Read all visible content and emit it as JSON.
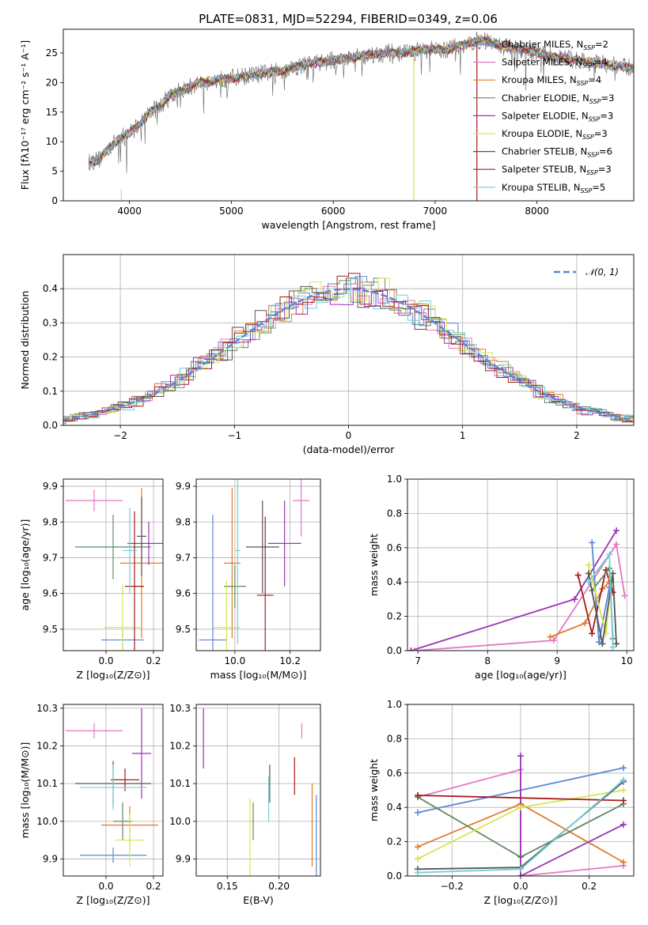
{
  "figure": {
    "title": "PLATE=0831, MJD=52294, FIBERID=0349, z=0.06"
  },
  "colors": {
    "chabrier_miles": "#5b86d9",
    "salpeter_miles": "#e377c2",
    "kroupa_miles": "#e07b2a",
    "chabrier_elodie": "#5f8a5f",
    "salpeter_elodie": "#9a33b5",
    "kroupa_elodie": "#d8e64d",
    "chabrier_stelib": "#555555",
    "salpeter_stelib": "#a61c1c",
    "kroupa_stelib": "#72cfd6",
    "gaussian": "#5b86d9"
  },
  "chart_data": [
    {
      "id": "spectrum",
      "type": "line",
      "xlabel": "wavelength [Angstrom, rest frame]",
      "ylabel": "Flux [fλ10⁻¹⁷ erg cm⁻² s⁻¹ A⁻¹]",
      "xlim": [
        3350,
        8950
      ],
      "ylim": [
        0,
        29
      ],
      "xticks": [
        4000,
        5000,
        6000,
        7000,
        8000
      ],
      "yticks": [
        0,
        5,
        10,
        15,
        20,
        25
      ],
      "grid": false,
      "legend_position": "right",
      "series": [
        {
          "name": "Chabrier MILES, N_SSP=2",
          "color_key": "chabrier_miles"
        },
        {
          "name": "Salpeter MILES, N_SSP=4",
          "color_key": "salpeter_miles"
        },
        {
          "name": "Kroupa MILES, N_SSP=4",
          "color_key": "kroupa_miles"
        },
        {
          "name": "Chabrier ELODIE, N_SSP=3",
          "color_key": "chabrier_elodie"
        },
        {
          "name": "Salpeter ELODIE, N_SSP=3",
          "color_key": "salpeter_elodie"
        },
        {
          "name": "Kroupa ELODIE, N_SSP=3",
          "color_key": "kroupa_elodie"
        },
        {
          "name": "Chabrier STELIB, N_SSP=6",
          "color_key": "chabrier_stelib"
        },
        {
          "name": "Salpeter STELIB, N_SSP=3",
          "color_key": "salpeter_stelib"
        },
        {
          "name": "Kroupa STELIB, N_SSP=5",
          "color_key": "kroupa_stelib"
        }
      ],
      "data_curve": {
        "x": [
          3600,
          3700,
          3800,
          3900,
          4000,
          4100,
          4200,
          4300,
          4400,
          4500,
          4700,
          4900,
          5100,
          5300,
          5500,
          5700,
          5900,
          6100,
          6300,
          6500,
          6700,
          6900,
          7000,
          7100,
          7200,
          7300,
          7400,
          7500,
          7700,
          7900,
          8100,
          8300,
          8500,
          8700,
          8900
        ],
        "y": [
          6.5,
          7,
          9,
          10.5,
          11.5,
          13,
          15,
          16,
          18,
          18.5,
          20,
          20.5,
          21,
          21.5,
          22,
          23,
          23.5,
          24,
          24.5,
          25,
          25,
          25.5,
          25.5,
          25.5,
          26,
          26.5,
          27,
          27,
          26,
          25.5,
          24.5,
          24,
          23.5,
          23,
          22.5
        ]
      },
      "spikes": [
        {
          "x": 3920,
          "ymin": 0,
          "ymax": 2,
          "color_key": "kroupa_elodie"
        },
        {
          "x": 6790,
          "ymin": 0,
          "ymax": 24,
          "color_key": "kroupa_elodie"
        },
        {
          "x": 7410,
          "ymin": 0,
          "ymax": 27,
          "color_key": "salpeter_stelib"
        }
      ]
    },
    {
      "id": "residual_histogram",
      "type": "line",
      "xlabel": "(data-model)/error",
      "ylabel": "Normed distribution",
      "xlim": [
        -2.5,
        2.5
      ],
      "ylim": [
        0,
        0.5
      ],
      "xticks": [
        -2,
        -1,
        0,
        1,
        2
      ],
      "yticks": [
        0.0,
        0.1,
        0.2,
        0.3,
        0.4
      ],
      "grid": true,
      "legend_position": "top-right",
      "gaussian_label": "𝒩(0, 1)"
    },
    {
      "id": "age_vs_Z",
      "type": "scatter",
      "xlabel": "Z [log₁₀(Z/Z⊙)]",
      "ylabel": "age  [log₁₀(age/yr)]",
      "xlim": [
        -0.18,
        0.24
      ],
      "ylim": [
        9.44,
        9.92
      ],
      "xticks": [
        0.0,
        0.2
      ],
      "yticks": [
        9.5,
        9.6,
        9.7,
        9.8,
        9.9
      ],
      "grid": true,
      "points": [
        {
          "color_key": "chabrier_miles",
          "x": 0.07,
          "xerr": 0.09,
          "y": 9.47,
          "yerr": 0.03
        },
        {
          "color_key": "salpeter_miles",
          "x": -0.05,
          "xerr": 0.12,
          "y": 9.86,
          "yerr": 0.03
        },
        {
          "color_key": "kroupa_miles",
          "x": 0.15,
          "xerr": 0.09,
          "y": 9.685,
          "yerr": 0.21
        },
        {
          "color_key": "chabrier_elodie",
          "x": 0.03,
          "xerr": 0.16,
          "y": 9.73,
          "yerr": 0.09
        },
        {
          "color_key": "salpeter_elodie",
          "x": 0.18,
          "xerr": 0.09,
          "y": 9.74,
          "yerr": 0.06
        },
        {
          "color_key": "kroupa_elodie",
          "x": 0.07,
          "xerr": 0.08,
          "y": 9.505,
          "yerr": 0.12
        },
        {
          "color_key": "chabrier_stelib",
          "x": 0.15,
          "xerr": 0.02,
          "y": 9.76,
          "yerr": 0.11
        },
        {
          "color_key": "salpeter_stelib",
          "x": 0.12,
          "xerr": 0.04,
          "y": 9.62,
          "yerr": 0.21
        },
        {
          "color_key": "kroupa_stelib",
          "x": 0.1,
          "xerr": 0.03,
          "y": 9.72,
          "yerr": 0.12
        }
      ]
    },
    {
      "id": "age_vs_mass",
      "type": "scatter",
      "xlabel": "mass [log₁₀(M/M⊙)]",
      "ylabel": "",
      "xlim": [
        9.86,
        10.31
      ],
      "ylim": [
        9.44,
        9.92
      ],
      "xticks": [
        10.0,
        10.2
      ],
      "yticks": [
        9.5,
        9.6,
        9.7,
        9.8,
        9.9
      ],
      "grid": true,
      "points": [
        {
          "color_key": "chabrier_miles",
          "x": 9.92,
          "xerr": 0.05,
          "y": 9.47,
          "yerr": 0.35
        },
        {
          "color_key": "salpeter_miles",
          "x": 10.24,
          "xerr": 0.03,
          "y": 9.86,
          "yerr": 0.1
        },
        {
          "color_key": "kroupa_miles",
          "x": 9.99,
          "xerr": 0.03,
          "y": 9.685,
          "yerr": 0.21
        },
        {
          "color_key": "chabrier_elodie",
          "x": 10.0,
          "xerr": 0.04,
          "y": 9.62,
          "yerr": 0.06
        },
        {
          "color_key": "salpeter_elodie",
          "x": 10.18,
          "xerr": 0.06,
          "y": 9.74,
          "yerr": 0.12
        },
        {
          "color_key": "kroupa_elodie",
          "x": 9.97,
          "xerr": 0.05,
          "y": 9.505,
          "yerr": 0.13
        },
        {
          "color_key": "chabrier_stelib",
          "x": 10.1,
          "xerr": 0.06,
          "y": 9.73,
          "yerr": 0.13
        },
        {
          "color_key": "salpeter_stelib",
          "x": 10.11,
          "xerr": 0.03,
          "y": 9.595,
          "yerr": 0.22
        },
        {
          "color_key": "kroupa_stelib",
          "x": 10.01,
          "xerr": 0.01,
          "y": 9.72,
          "yerr": 0.26
        }
      ]
    },
    {
      "id": "weight_vs_age",
      "type": "line",
      "xlabel": "age  [log₁₀(age/yr)]",
      "ylabel": "mass weight",
      "xlim": [
        6.85,
        10.1
      ],
      "ylim": [
        0,
        1.0
      ],
      "xticks": [
        7,
        8,
        9,
        10
      ],
      "yticks": [
        0.0,
        0.2,
        0.4,
        0.6,
        0.8,
        1.0
      ],
      "grid": true,
      "series": [
        {
          "color_key": "salpeter_elodie",
          "x": [
            6.9,
            9.25,
            9.85
          ],
          "y": [
            0.0,
            0.3,
            0.7
          ]
        },
        {
          "color_key": "salpeter_miles",
          "x": [
            6.95,
            8.95,
            9.85,
            9.97
          ],
          "y": [
            0.0,
            0.06,
            0.62,
            0.32
          ]
        },
        {
          "color_key": "kroupa_miles",
          "x": [
            8.9,
            9.4,
            9.65,
            9.75
          ],
          "y": [
            0.08,
            0.16,
            0.36,
            0.4
          ]
        },
        {
          "color_key": "chabrier_miles",
          "x": [
            9.5,
            9.6,
            9.75
          ],
          "y": [
            0.63,
            0.05,
            0.37
          ]
        },
        {
          "color_key": "salpeter_stelib",
          "x": [
            9.3,
            9.5,
            9.7,
            9.8
          ],
          "y": [
            0.44,
            0.1,
            0.47,
            0.34
          ]
        },
        {
          "color_key": "chabrier_elodie",
          "x": [
            9.5,
            9.75,
            9.8
          ],
          "y": [
            0.35,
            0.48,
            0.07
          ]
        },
        {
          "color_key": "kroupa_elodie",
          "x": [
            9.45,
            9.7,
            9.78
          ],
          "y": [
            0.5,
            0.1,
            0.42
          ]
        },
        {
          "color_key": "chabrier_stelib",
          "x": [
            9.45,
            9.65,
            9.8,
            9.85
          ],
          "y": [
            0.45,
            0.04,
            0.45,
            0.04
          ]
        },
        {
          "color_key": "kroupa_stelib",
          "x": [
            9.45,
            9.75,
            9.8
          ],
          "y": [
            0.4,
            0.56,
            0.02
          ]
        }
      ]
    },
    {
      "id": "mass_vs_Z",
      "type": "scatter",
      "xlabel": "Z [log₁₀(Z/Z⊙)]",
      "ylabel": "mass [log₁₀(M/M⊙)]",
      "xlim": [
        -0.18,
        0.24
      ],
      "ylim": [
        9.855,
        10.31
      ],
      "xticks": [
        0.0,
        0.2
      ],
      "yticks": [
        9.9,
        10.0,
        10.1,
        10.2,
        10.3
      ],
      "grid": true,
      "points": [
        {
          "color_key": "chabrier_miles",
          "x": 0.03,
          "xerr": 0.14,
          "y": 9.91,
          "yerr": 0.02
        },
        {
          "color_key": "salpeter_miles",
          "x": -0.05,
          "xerr": 0.12,
          "y": 10.24,
          "yerr": 0.02
        },
        {
          "color_key": "kroupa_miles",
          "x": 0.1,
          "xerr": 0.12,
          "y": 9.99,
          "yerr": 0.05
        },
        {
          "color_key": "chabrier_elodie",
          "x": 0.07,
          "xerr": 0.04,
          "y": 10.0,
          "yerr": 0.05
        },
        {
          "color_key": "salpeter_elodie",
          "x": 0.15,
          "xerr": 0.04,
          "y": 10.18,
          "yerr": 0.12
        },
        {
          "color_key": "kroupa_elodie",
          "x": 0.1,
          "xerr": 0.06,
          "y": 9.95,
          "yerr": 0.07
        },
        {
          "color_key": "chabrier_stelib",
          "x": 0.03,
          "xerr": 0.16,
          "y": 10.1,
          "yerr": 0.06
        },
        {
          "color_key": "salpeter_stelib",
          "x": 0.08,
          "xerr": 0.06,
          "y": 10.11,
          "yerr": 0.03
        },
        {
          "color_key": "kroupa_stelib",
          "x": 0.03,
          "xerr": 0.14,
          "y": 10.09,
          "yerr": 0.06
        }
      ]
    },
    {
      "id": "mass_vs_ebv",
      "type": "scatter",
      "xlabel": "E(B-V)",
      "ylabel": "",
      "xlim": [
        0.12,
        0.24
      ],
      "ylim": [
        9.855,
        10.31
      ],
      "xticks": [
        0.15,
        0.2
      ],
      "yticks": [
        9.9,
        10.0,
        10.1,
        10.2,
        10.3
      ],
      "grid": true,
      "points": [
        {
          "color_key": "chabrier_miles",
          "x": 0.236,
          "xerr": 0.0,
          "y": 9.96,
          "yerr": 0.11
        },
        {
          "color_key": "salpeter_miles",
          "x": 0.222,
          "xerr": 0.0,
          "y": 10.24,
          "yerr": 0.02
        },
        {
          "color_key": "kroupa_miles",
          "x": 0.232,
          "xerr": 0.0,
          "y": 9.99,
          "yerr": 0.11
        },
        {
          "color_key": "chabrier_elodie",
          "x": 0.175,
          "xerr": 0.0,
          "y": 10.0,
          "yerr": 0.05
        },
        {
          "color_key": "salpeter_elodie",
          "x": 0.127,
          "xerr": 0.0,
          "y": 10.22,
          "yerr": 0.08
        },
        {
          "color_key": "kroupa_elodie",
          "x": 0.172,
          "xerr": 0.0,
          "y": 9.95,
          "yerr": 0.11
        },
        {
          "color_key": "chabrier_stelib",
          "x": 0.191,
          "xerr": 0.0,
          "y": 10.1,
          "yerr": 0.05
        },
        {
          "color_key": "salpeter_stelib",
          "x": 0.215,
          "xerr": 0.0,
          "y": 10.12,
          "yerr": 0.05
        },
        {
          "color_key": "kroupa_stelib",
          "x": 0.19,
          "xerr": 0.0,
          "y": 10.06,
          "yerr": 0.06
        }
      ]
    },
    {
      "id": "weight_vs_Z",
      "type": "line",
      "xlabel": "Z [log₁₀(Z/Z⊙)]",
      "ylabel": "mass weight",
      "xlim": [
        -0.33,
        0.33
      ],
      "ylim": [
        0,
        1.0
      ],
      "xticks": [
        -0.2,
        0.0,
        0.2
      ],
      "yticks": [
        0.0,
        0.2,
        0.4,
        0.6,
        0.8,
        1.0
      ],
      "grid": true,
      "series": [
        {
          "color_key": "chabrier_miles",
          "x": [
            -0.3,
            0.3
          ],
          "y": [
            0.37,
            0.63
          ]
        },
        {
          "color_key": "salpeter_miles",
          "x": [
            -0.3,
            0.0,
            0.0,
            0.3
          ],
          "y": [
            0.46,
            0.62,
            0.0,
            0.06
          ]
        },
        {
          "color_key": "kroupa_miles",
          "x": [
            -0.3,
            0.0,
            0.3
          ],
          "y": [
            0.17,
            0.42,
            0.08
          ]
        },
        {
          "color_key": "chabrier_elodie",
          "x": [
            -0.3,
            0.0,
            0.3
          ],
          "y": [
            0.46,
            0.11,
            0.42
          ]
        },
        {
          "color_key": "salpeter_elodie",
          "x": [
            0.0,
            0.0,
            0.3
          ],
          "y": [
            0.7,
            0.0,
            0.3
          ]
        },
        {
          "color_key": "kroupa_elodie",
          "x": [
            -0.3,
            0.0,
            0.3
          ],
          "y": [
            0.1,
            0.4,
            0.5
          ]
        },
        {
          "color_key": "chabrier_stelib",
          "x": [
            -0.3,
            0.0,
            0.3
          ],
          "y": [
            0.04,
            0.05,
            0.55
          ]
        },
        {
          "color_key": "salpeter_stelib",
          "x": [
            -0.3,
            0.3
          ],
          "y": [
            0.47,
            0.44
          ]
        },
        {
          "color_key": "kroupa_stelib",
          "x": [
            -0.3,
            0.0,
            0.3
          ],
          "y": [
            0.02,
            0.04,
            0.56
          ]
        }
      ]
    }
  ]
}
